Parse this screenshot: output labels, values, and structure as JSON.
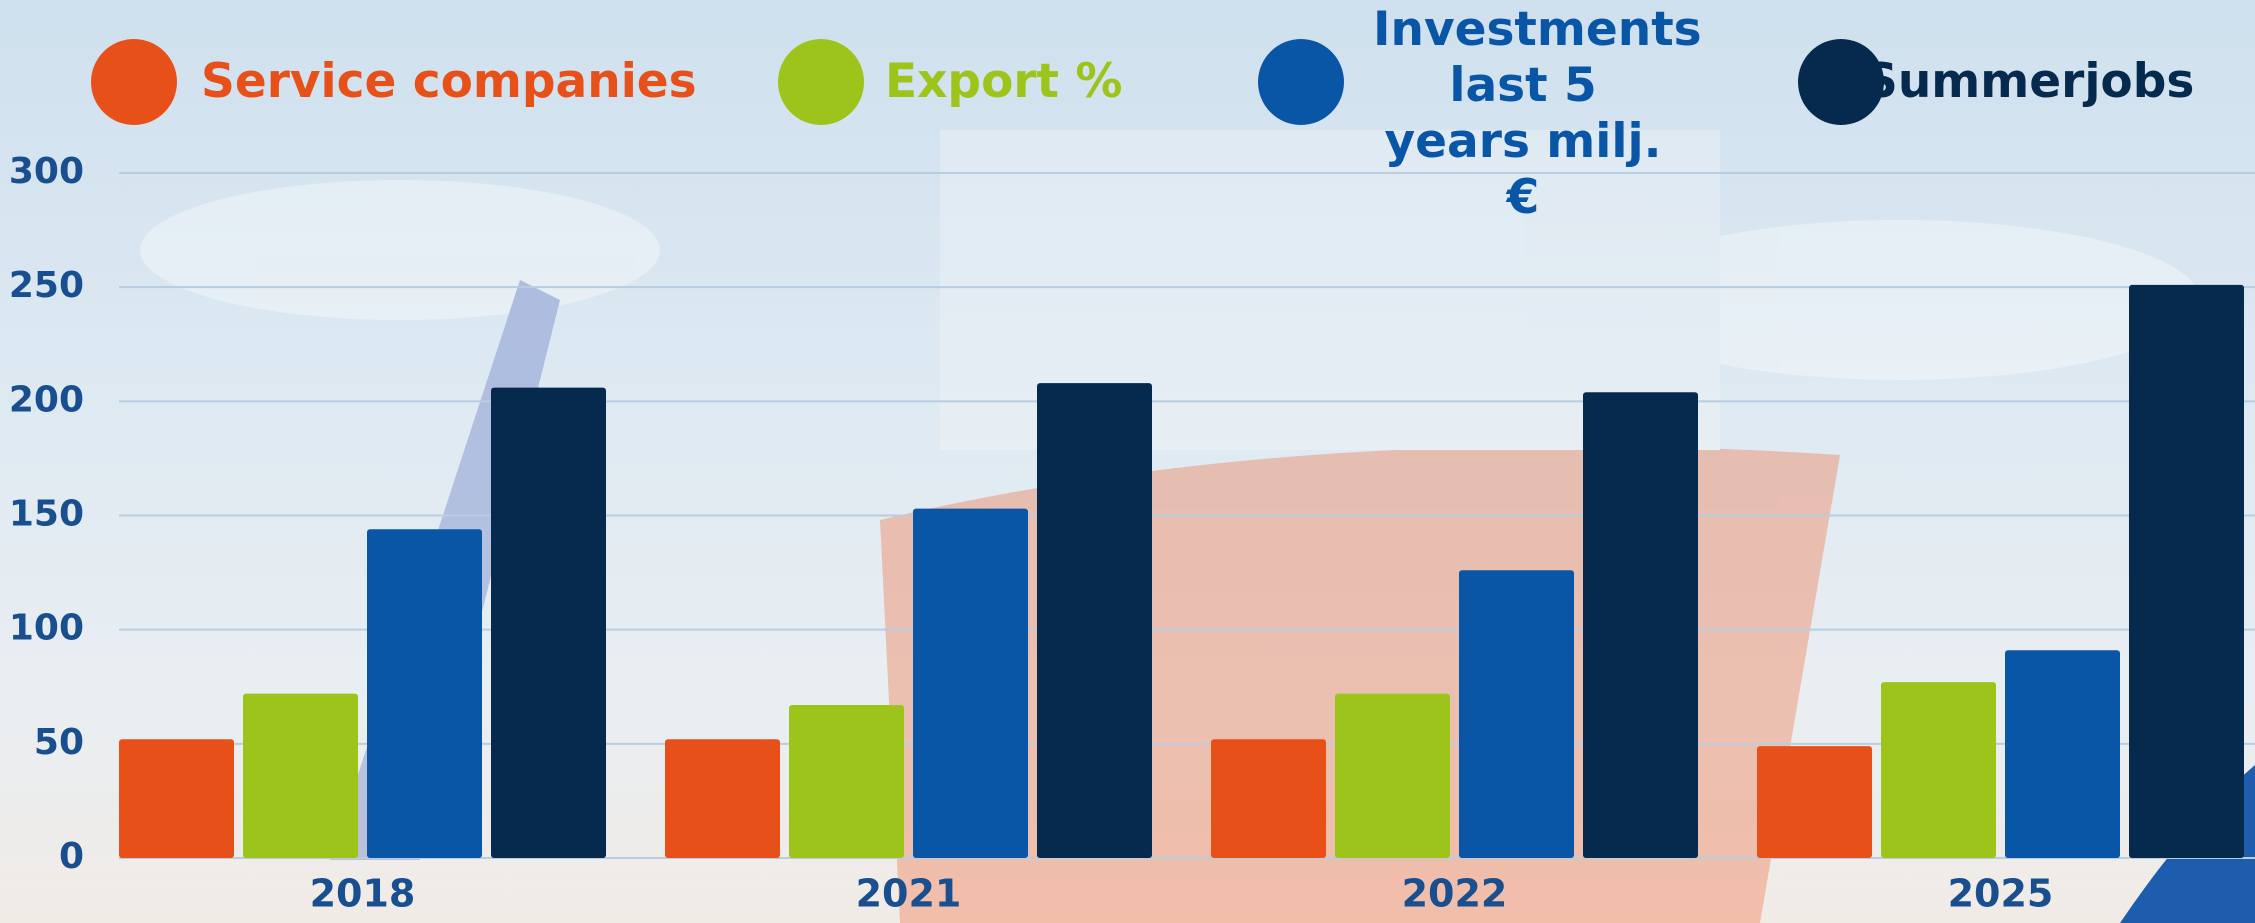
{
  "chart_data": {
    "type": "bar",
    "categories": [
      "2018",
      "2021",
      "2022",
      "2025"
    ],
    "series": [
      {
        "name": "Service companies",
        "color": "#e8501a",
        "values": [
          52,
          52,
          52,
          49
        ]
      },
      {
        "name": "Export %",
        "color": "#9dc41a",
        "values": [
          72,
          67,
          72,
          77
        ]
      },
      {
        "name": "Investments last 5 years milj. €",
        "color": "#0a56a6",
        "values": [
          144,
          153,
          126,
          91
        ]
      },
      {
        "name": "Summerjobs",
        "color": "#062a4e",
        "values": [
          206,
          208,
          204,
          251
        ]
      }
    ],
    "ylim": [
      0,
      300
    ],
    "yticks": [
      0,
      50,
      100,
      150,
      200,
      250,
      300
    ],
    "grid": true
  }
}
